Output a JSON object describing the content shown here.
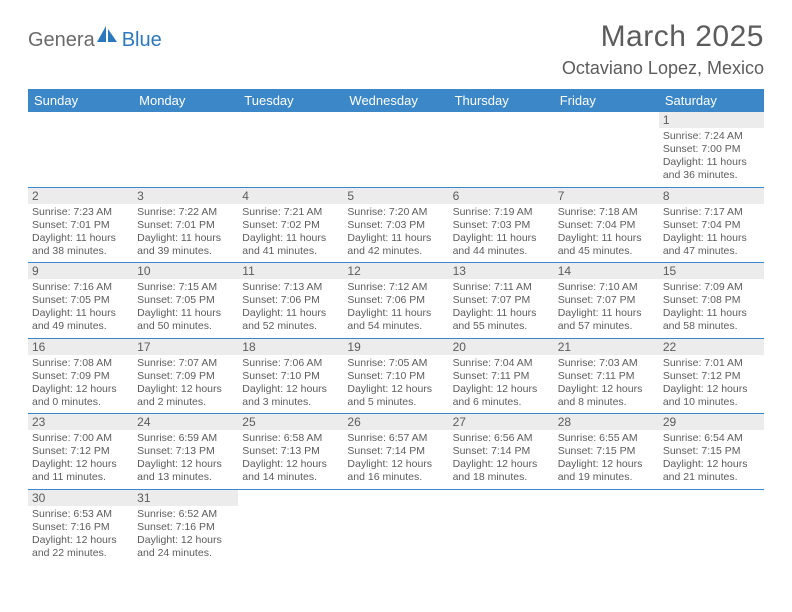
{
  "brand": {
    "part1": "Genera",
    "part2": "Blue"
  },
  "title": "March 2025",
  "location": "Octaviano Lopez, Mexico",
  "colors": {
    "header_bg": "#3b87c8",
    "text": "#5c5c5c",
    "daynum_bg": "#ececec",
    "border": "#3b87c8",
    "logo_gray": "#6a6a6a",
    "logo_blue": "#2d78bc"
  },
  "weekdays": [
    "Sunday",
    "Monday",
    "Tuesday",
    "Wednesday",
    "Thursday",
    "Friday",
    "Saturday"
  ],
  "weeks": [
    [
      null,
      null,
      null,
      null,
      null,
      null,
      {
        "d": "1",
        "sr": "7:24 AM",
        "ss": "7:00 PM",
        "dh": "11",
        "dm": "36"
      }
    ],
    [
      {
        "d": "2",
        "sr": "7:23 AM",
        "ss": "7:01 PM",
        "dh": "11",
        "dm": "38"
      },
      {
        "d": "3",
        "sr": "7:22 AM",
        "ss": "7:01 PM",
        "dh": "11",
        "dm": "39"
      },
      {
        "d": "4",
        "sr": "7:21 AM",
        "ss": "7:02 PM",
        "dh": "11",
        "dm": "41"
      },
      {
        "d": "5",
        "sr": "7:20 AM",
        "ss": "7:03 PM",
        "dh": "11",
        "dm": "42"
      },
      {
        "d": "6",
        "sr": "7:19 AM",
        "ss": "7:03 PM",
        "dh": "11",
        "dm": "44"
      },
      {
        "d": "7",
        "sr": "7:18 AM",
        "ss": "7:04 PM",
        "dh": "11",
        "dm": "45"
      },
      {
        "d": "8",
        "sr": "7:17 AM",
        "ss": "7:04 PM",
        "dh": "11",
        "dm": "47"
      }
    ],
    [
      {
        "d": "9",
        "sr": "7:16 AM",
        "ss": "7:05 PM",
        "dh": "11",
        "dm": "49"
      },
      {
        "d": "10",
        "sr": "7:15 AM",
        "ss": "7:05 PM",
        "dh": "11",
        "dm": "50"
      },
      {
        "d": "11",
        "sr": "7:13 AM",
        "ss": "7:06 PM",
        "dh": "11",
        "dm": "52"
      },
      {
        "d": "12",
        "sr": "7:12 AM",
        "ss": "7:06 PM",
        "dh": "11",
        "dm": "54"
      },
      {
        "d": "13",
        "sr": "7:11 AM",
        "ss": "7:07 PM",
        "dh": "11",
        "dm": "55"
      },
      {
        "d": "14",
        "sr": "7:10 AM",
        "ss": "7:07 PM",
        "dh": "11",
        "dm": "57"
      },
      {
        "d": "15",
        "sr": "7:09 AM",
        "ss": "7:08 PM",
        "dh": "11",
        "dm": "58"
      }
    ],
    [
      {
        "d": "16",
        "sr": "7:08 AM",
        "ss": "7:09 PM",
        "dh": "12",
        "dm": "0"
      },
      {
        "d": "17",
        "sr": "7:07 AM",
        "ss": "7:09 PM",
        "dh": "12",
        "dm": "2"
      },
      {
        "d": "18",
        "sr": "7:06 AM",
        "ss": "7:10 PM",
        "dh": "12",
        "dm": "3"
      },
      {
        "d": "19",
        "sr": "7:05 AM",
        "ss": "7:10 PM",
        "dh": "12",
        "dm": "5"
      },
      {
        "d": "20",
        "sr": "7:04 AM",
        "ss": "7:11 PM",
        "dh": "12",
        "dm": "6"
      },
      {
        "d": "21",
        "sr": "7:03 AM",
        "ss": "7:11 PM",
        "dh": "12",
        "dm": "8"
      },
      {
        "d": "22",
        "sr": "7:01 AM",
        "ss": "7:12 PM",
        "dh": "12",
        "dm": "10"
      }
    ],
    [
      {
        "d": "23",
        "sr": "7:00 AM",
        "ss": "7:12 PM",
        "dh": "12",
        "dm": "11"
      },
      {
        "d": "24",
        "sr": "6:59 AM",
        "ss": "7:13 PM",
        "dh": "12",
        "dm": "13"
      },
      {
        "d": "25",
        "sr": "6:58 AM",
        "ss": "7:13 PM",
        "dh": "12",
        "dm": "14"
      },
      {
        "d": "26",
        "sr": "6:57 AM",
        "ss": "7:14 PM",
        "dh": "12",
        "dm": "16"
      },
      {
        "d": "27",
        "sr": "6:56 AM",
        "ss": "7:14 PM",
        "dh": "12",
        "dm": "18"
      },
      {
        "d": "28",
        "sr": "6:55 AM",
        "ss": "7:15 PM",
        "dh": "12",
        "dm": "19"
      },
      {
        "d": "29",
        "sr": "6:54 AM",
        "ss": "7:15 PM",
        "dh": "12",
        "dm": "21"
      }
    ],
    [
      {
        "d": "30",
        "sr": "6:53 AM",
        "ss": "7:16 PM",
        "dh": "12",
        "dm": "22"
      },
      {
        "d": "31",
        "sr": "6:52 AM",
        "ss": "7:16 PM",
        "dh": "12",
        "dm": "24"
      },
      null,
      null,
      null,
      null,
      null
    ]
  ]
}
